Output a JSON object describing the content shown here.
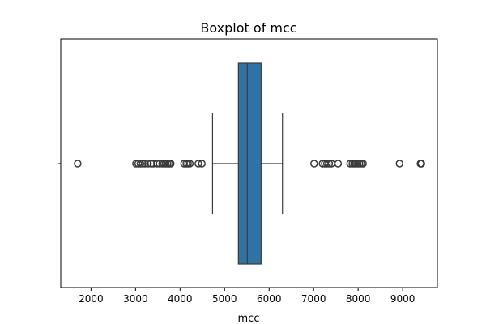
{
  "chart_data": {
    "type": "boxplot",
    "title": "Boxplot of mcc",
    "xlabel": "mcc",
    "ylabel": "",
    "orientation": "horizontal",
    "xlim": [
      1320,
      9780
    ],
    "xticks": [
      2000,
      3000,
      4000,
      5000,
      6000,
      7000,
      8000,
      9000
    ],
    "xtick_labels": [
      "2000",
      "3000",
      "4000",
      "5000",
      "6000",
      "7000",
      "8000",
      "9000"
    ],
    "box": {
      "whisker_low": 4730,
      "q1": 5310,
      "median": 5510,
      "q3": 5820,
      "whisker_high": 6300
    },
    "outliers": [
      1700,
      3010,
      3060,
      3110,
      3160,
      3210,
      3280,
      3350,
      3400,
      3480,
      3540,
      3600,
      3640,
      3680,
      3720,
      3760,
      3790,
      4090,
      4140,
      4180,
      4220,
      4410,
      4490,
      7010,
      7200,
      7250,
      7300,
      7350,
      7400,
      7550,
      7820,
      7870,
      7910,
      7950,
      7990,
      8030,
      8070,
      8110,
      8930,
      9400,
      9420
    ],
    "box_color": "#2f72a6",
    "line_color": "#3a3a3a",
    "grid": false
  }
}
